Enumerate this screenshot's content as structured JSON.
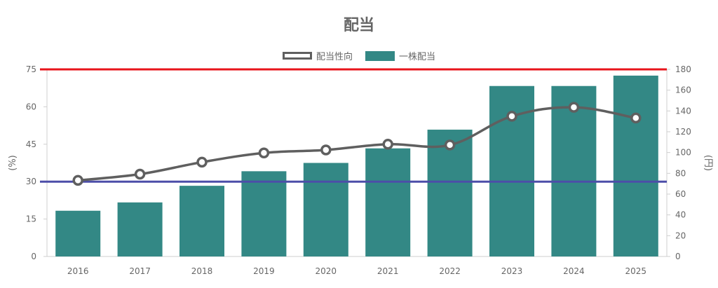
{
  "chart_data": {
    "type": "bar",
    "title": "配当",
    "categories": [
      "2016",
      "2017",
      "2018",
      "2019",
      "2020",
      "2021",
      "2022",
      "2023",
      "2024",
      "2025"
    ],
    "series": [
      {
        "name": "配当性向",
        "axis": "left",
        "render": "line",
        "values": [
          30.5,
          33.0,
          37.8,
          41.5,
          42.7,
          45.0,
          44.7,
          56.2,
          59.8,
          55.5
        ]
      },
      {
        "name": "一株配当",
        "axis": "right",
        "render": "bar",
        "values": [
          44,
          52,
          68,
          82,
          90,
          104,
          122,
          164,
          164,
          174
        ]
      }
    ],
    "ylabel_left": "(%)",
    "ylabel_right": "(円)",
    "yticks_left": [
      "0",
      "15",
      "30",
      "45",
      "60",
      "75"
    ],
    "yticks_right": [
      "0",
      "20",
      "40",
      "60",
      "80",
      "100",
      "120",
      "140",
      "160",
      "180"
    ],
    "ylim_left": [
      0,
      75
    ],
    "ylim_right": [
      0,
      180
    ],
    "reference_lines": [
      {
        "value": 75,
        "axis": "left",
        "color": "#e8141b"
      },
      {
        "value": 30,
        "axis": "left",
        "color": "#4c4ea8"
      }
    ],
    "colors": {
      "bar": "#338885",
      "line": "#5f5f5f",
      "text": "#666666",
      "grid": "#e6e6e6"
    },
    "legend_position": "top-center",
    "grid": false
  }
}
